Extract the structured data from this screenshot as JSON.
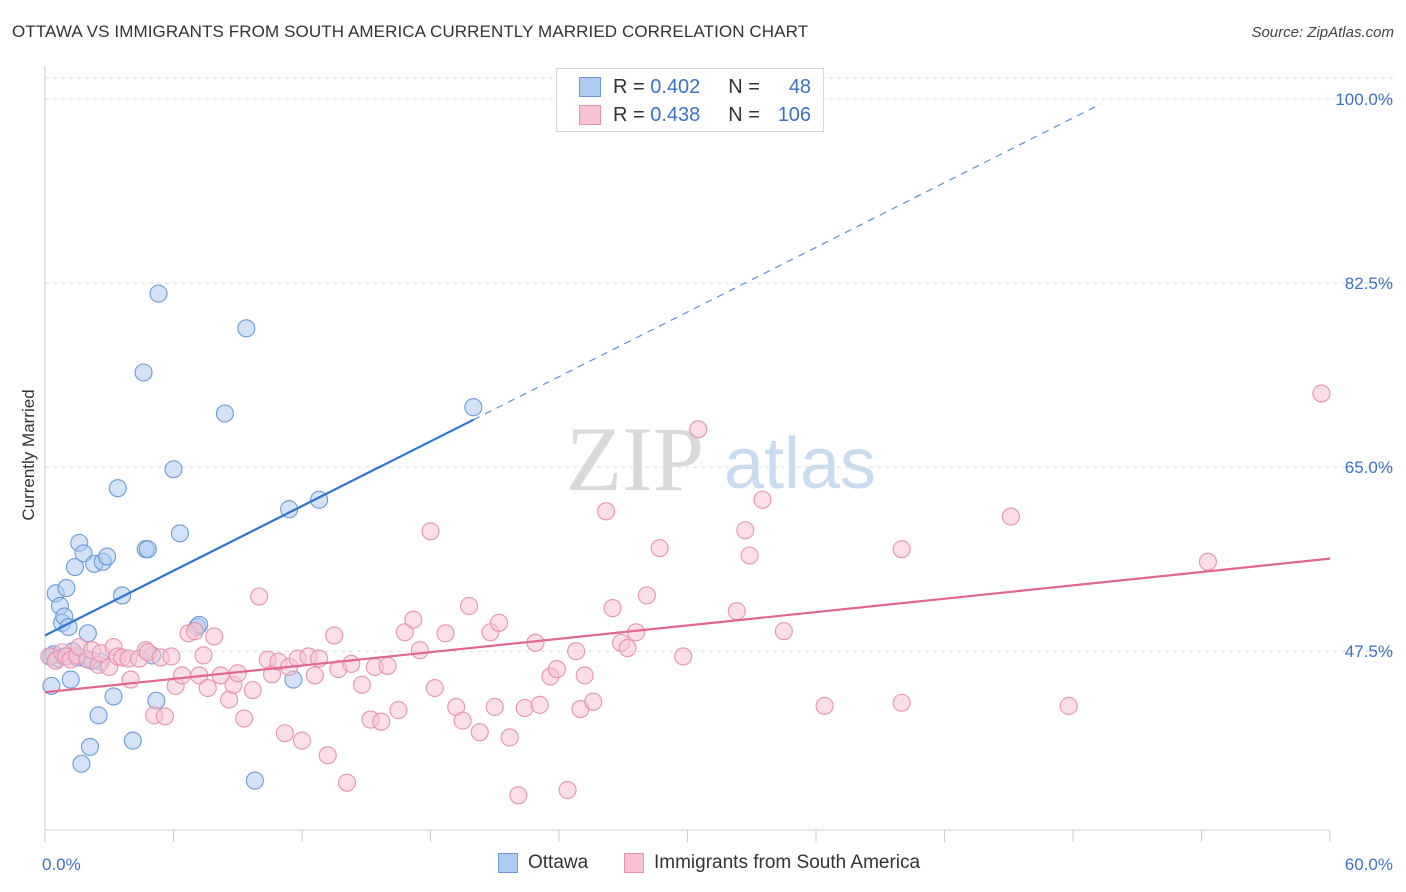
{
  "title": "OTTAWA VS IMMIGRANTS FROM SOUTH AMERICA CURRENTLY MARRIED CORRELATION CHART",
  "source": "Source: ZipAtlas.com",
  "legend": {
    "r_label": "R =",
    "n_label": "N =",
    "rows": [
      {
        "r": "0.402",
        "n": "48"
      },
      {
        "r": "0.438",
        "n": "106"
      }
    ]
  },
  "colors": {
    "ottawa_fill": "#aecbf0",
    "ottawa_stroke": "#6a9bd8",
    "ottawa_line": "#2f74d0",
    "imm_fill": "#f7c3d3",
    "imm_stroke": "#e693b0",
    "imm_line": "#e0678f",
    "tick_text": "#3a72c4",
    "grid": "#dddddd"
  },
  "chart_data": {
    "type": "scatter",
    "title": "OTTAWA VS IMMIGRANTS FROM SOUTH AMERICA CURRENTLY MARRIED CORRELATION CHART",
    "xlabel": "",
    "ylabel": "Currently Married",
    "xlim": [
      0,
      60
    ],
    "ylim": [
      30.5,
      102
    ],
    "x_tick_labels": [
      "0.0%",
      "60.0%"
    ],
    "y_ticks": [
      47.5,
      65.0,
      82.5,
      100.0
    ],
    "y_tick_labels": [
      "47.5%",
      "65.0%",
      "82.5%",
      "100.0%"
    ],
    "grid": true,
    "legend_position": "top-center",
    "watermark": {
      "zip": "ZIP",
      "atlas": "atlas"
    },
    "series": [
      {
        "name": "Ottawa",
        "r": 0.402,
        "n": 48,
        "trend": {
          "x0": 0,
          "y0": 49.0,
          "x1": 20,
          "y1": 69.5,
          "dashed_to_x": 49.3
        },
        "points": [
          [
            0.3,
            47.0
          ],
          [
            0.3,
            44.2
          ],
          [
            0.5,
            53.0
          ],
          [
            0.7,
            51.8
          ],
          [
            0.8,
            50.2
          ],
          [
            0.9,
            50.8
          ],
          [
            1.0,
            53.5
          ],
          [
            1.1,
            49.8
          ],
          [
            1.2,
            44.8
          ],
          [
            1.4,
            55.5
          ],
          [
            1.6,
            57.8
          ],
          [
            1.7,
            36.8
          ],
          [
            1.8,
            56.8
          ],
          [
            1.9,
            46.8
          ],
          [
            2.0,
            49.2
          ],
          [
            2.1,
            38.4
          ],
          [
            2.3,
            55.8
          ],
          [
            2.5,
            41.4
          ],
          [
            2.6,
            46.5
          ],
          [
            2.7,
            56.0
          ],
          [
            2.9,
            56.5
          ],
          [
            3.2,
            43.2
          ],
          [
            3.4,
            63.0
          ],
          [
            3.6,
            52.8
          ],
          [
            4.1,
            39.0
          ],
          [
            4.6,
            74.0
          ],
          [
            4.7,
            57.2
          ],
          [
            4.8,
            57.2
          ],
          [
            5.0,
            47.1
          ],
          [
            5.2,
            42.8
          ],
          [
            5.3,
            81.5
          ],
          [
            6.0,
            64.8
          ],
          [
            6.3,
            58.7
          ],
          [
            7.1,
            49.8
          ],
          [
            7.2,
            50.0
          ],
          [
            8.4,
            70.1
          ],
          [
            9.4,
            78.2
          ],
          [
            9.8,
            35.2
          ],
          [
            11.4,
            61.0
          ],
          [
            11.6,
            44.8
          ],
          [
            12.8,
            61.9
          ],
          [
            20.0,
            70.7
          ],
          [
            0.4,
            47.2
          ],
          [
            0.6,
            46.8
          ],
          [
            1.3,
            47.5
          ],
          [
            0.9,
            47.0
          ],
          [
            1.5,
            46.9
          ],
          [
            2.2,
            46.6
          ]
        ]
      },
      {
        "name": "Immigrants from South America",
        "r": 0.438,
        "n": 106,
        "trend": {
          "x0": 0,
          "y0": 43.6,
          "x1": 60,
          "y1": 56.3
        },
        "points": [
          [
            0.2,
            47.0
          ],
          [
            0.5,
            46.6
          ],
          [
            0.8,
            47.4
          ],
          [
            1.0,
            47.0
          ],
          [
            1.2,
            46.7
          ],
          [
            1.5,
            47.1
          ],
          [
            1.6,
            47.9
          ],
          [
            2.0,
            46.7
          ],
          [
            2.2,
            47.6
          ],
          [
            2.5,
            46.2
          ],
          [
            2.6,
            47.3
          ],
          [
            3.0,
            46.0
          ],
          [
            3.2,
            47.9
          ],
          [
            3.4,
            47.0
          ],
          [
            3.6,
            46.9
          ],
          [
            3.9,
            46.8
          ],
          [
            4.0,
            44.8
          ],
          [
            4.4,
            46.8
          ],
          [
            4.7,
            47.6
          ],
          [
            4.8,
            47.4
          ],
          [
            5.1,
            41.4
          ],
          [
            5.4,
            46.9
          ],
          [
            5.6,
            41.3
          ],
          [
            5.9,
            47.0
          ],
          [
            6.1,
            44.2
          ],
          [
            6.4,
            45.2
          ],
          [
            6.7,
            49.2
          ],
          [
            7.0,
            49.4
          ],
          [
            7.2,
            45.2
          ],
          [
            7.4,
            47.1
          ],
          [
            7.6,
            44.0
          ],
          [
            7.9,
            48.9
          ],
          [
            8.2,
            45.2
          ],
          [
            8.6,
            42.9
          ],
          [
            8.8,
            44.3
          ],
          [
            9.0,
            45.4
          ],
          [
            9.3,
            41.1
          ],
          [
            9.7,
            43.8
          ],
          [
            10.0,
            52.7
          ],
          [
            10.4,
            46.7
          ],
          [
            10.6,
            45.3
          ],
          [
            10.9,
            46.5
          ],
          [
            11.2,
            39.7
          ],
          [
            11.4,
            46.0
          ],
          [
            11.8,
            46.8
          ],
          [
            12.0,
            39.0
          ],
          [
            12.3,
            47.0
          ],
          [
            12.6,
            45.2
          ],
          [
            12.8,
            46.8
          ],
          [
            13.2,
            37.6
          ],
          [
            13.5,
            49.0
          ],
          [
            13.7,
            45.8
          ],
          [
            14.1,
            35.0
          ],
          [
            14.3,
            46.3
          ],
          [
            14.8,
            44.3
          ],
          [
            15.2,
            41.0
          ],
          [
            15.4,
            46.0
          ],
          [
            15.7,
            40.8
          ],
          [
            16.0,
            46.1
          ],
          [
            16.5,
            41.9
          ],
          [
            16.8,
            49.3
          ],
          [
            17.2,
            50.5
          ],
          [
            17.5,
            47.6
          ],
          [
            18.0,
            58.9
          ],
          [
            18.2,
            44.0
          ],
          [
            18.7,
            49.2
          ],
          [
            19.2,
            42.2
          ],
          [
            19.5,
            40.9
          ],
          [
            19.8,
            51.8
          ],
          [
            20.3,
            39.8
          ],
          [
            20.8,
            49.3
          ],
          [
            21.0,
            42.2
          ],
          [
            21.2,
            50.2
          ],
          [
            21.7,
            39.3
          ],
          [
            22.1,
            33.8
          ],
          [
            22.4,
            42.1
          ],
          [
            22.9,
            48.3
          ],
          [
            23.1,
            42.4
          ],
          [
            23.6,
            45.1
          ],
          [
            23.9,
            45.8
          ],
          [
            24.4,
            34.3
          ],
          [
            24.8,
            47.5
          ],
          [
            25.0,
            42.0
          ],
          [
            25.2,
            45.2
          ],
          [
            25.6,
            42.7
          ],
          [
            26.2,
            60.8
          ],
          [
            26.5,
            51.6
          ],
          [
            26.9,
            48.3
          ],
          [
            27.2,
            47.8
          ],
          [
            27.6,
            49.3
          ],
          [
            28.1,
            52.8
          ],
          [
            28.7,
            57.3
          ],
          [
            29.8,
            47.0
          ],
          [
            30.5,
            68.6
          ],
          [
            32.3,
            51.3
          ],
          [
            32.7,
            59.0
          ],
          [
            32.9,
            56.6
          ],
          [
            33.5,
            61.9
          ],
          [
            34.5,
            49.4
          ],
          [
            36.4,
            42.3
          ],
          [
            40.0,
            57.2
          ],
          [
            40.0,
            42.6
          ],
          [
            45.1,
            60.3
          ],
          [
            47.8,
            42.3
          ],
          [
            54.3,
            56.0
          ],
          [
            59.6,
            72.0
          ]
        ]
      }
    ]
  },
  "bottom_legend": [
    "Ottawa",
    "Immigrants from South America"
  ]
}
